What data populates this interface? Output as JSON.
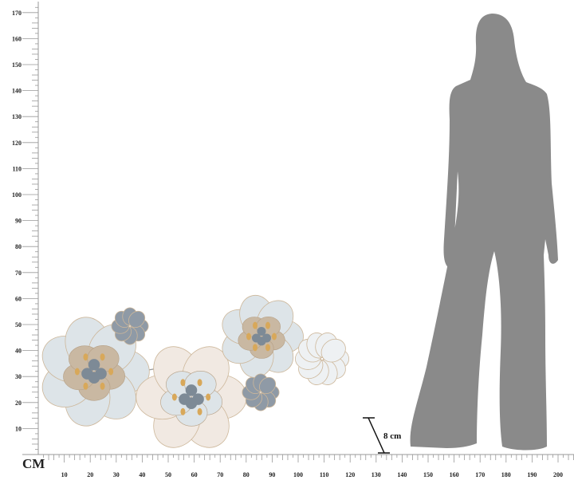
{
  "ruler": {
    "unit": "CM",
    "vertical_labels": [
      "10",
      "20",
      "30",
      "40",
      "50",
      "60",
      "70",
      "80",
      "90",
      "100",
      "110",
      "120",
      "130",
      "140",
      "150",
      "160",
      "170"
    ],
    "horizontal_labels": [
      "10",
      "20",
      "30",
      "40",
      "50",
      "60",
      "70",
      "80",
      "90",
      "100",
      "110",
      "120",
      "130",
      "140",
      "150",
      "160",
      "170",
      "180",
      "190",
      "200"
    ],
    "tick_color": "#999999"
  },
  "annotation": {
    "depth_label": "8 cm"
  },
  "product": {
    "flower_colors": [
      "#dde4e8",
      "#c9b8a2",
      "#7d8a96",
      "#d8a85a",
      "#f1e9e2"
    ]
  },
  "silhouette": {
    "color": "#8a8a8a"
  }
}
